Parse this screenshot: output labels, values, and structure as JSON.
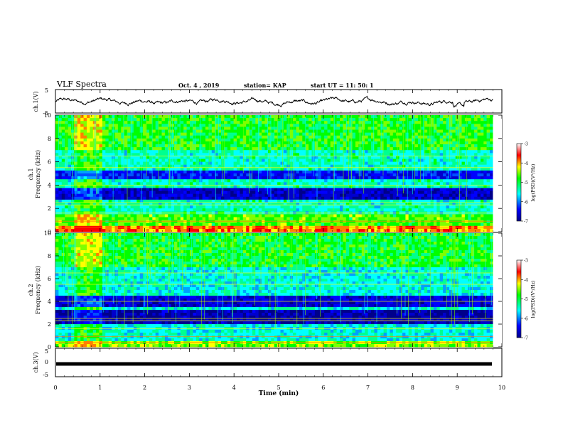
{
  "header": {
    "title": "VLF Spectra",
    "date": "Oct. 4 , 2019",
    "station": "station= KAP",
    "start": "start UT =  11: 50: 1"
  },
  "chart_data": [
    {
      "type": "line",
      "name": "ch1-waveform",
      "ylabel": "ch.1(V)",
      "ylim": [
        -5,
        5
      ],
      "yticks": [
        "5",
        "-5"
      ],
      "xlim": [
        0,
        10
      ],
      "description_values": "noisy waveform oscillating between about -1.5 and 1.5 V with excursion near 9 min"
    },
    {
      "type": "heatmap",
      "name": "ch1-spectrogram",
      "xlabel": "",
      "ylabel": "ch.1\nFrequency (kHz)",
      "xlim": [
        0,
        9.8
      ],
      "ylim": [
        0,
        10
      ],
      "yticks": [
        "0",
        "2",
        "4",
        "6",
        "8",
        "10"
      ],
      "colorbar": {
        "label": "log(PSD)(V²/Hz)",
        "range": [
          -7,
          -3
        ],
        "ticks": [
          "-3",
          "-4",
          "-5",
          "-6",
          "-7"
        ]
      }
    },
    {
      "type": "heatmap",
      "name": "ch2-spectrogram",
      "ylabel": "ch.2\nFrequency (kHz)",
      "xlim": [
        0,
        9.8
      ],
      "ylim": [
        0,
        10
      ],
      "yticks": [
        "0",
        "2",
        "4",
        "6",
        "8",
        "10"
      ],
      "colorbar": {
        "label": "log(PSD)(V²/Hz)",
        "range": [
          -7,
          -3
        ],
        "ticks": [
          "-3",
          "-4",
          "-5",
          "-6",
          "-7"
        ]
      }
    },
    {
      "type": "line",
      "name": "ch3-waveform",
      "ylabel": "ch.3(V)",
      "ylim": [
        -5,
        5
      ],
      "yticks": [
        "5",
        "0",
        "-5"
      ],
      "xlim": [
        0,
        10
      ],
      "flat_value": -1,
      "xlabel": "Time (min)",
      "xticks": [
        "0",
        "1",
        "2",
        "3",
        "4",
        "5",
        "6",
        "7",
        "8",
        "9",
        "10"
      ]
    }
  ],
  "labels": {
    "ch1_v": "ch.1(V)",
    "ch1_spec_a": "ch.1",
    "ch1_spec_b": "Frequency (kHz)",
    "ch2_spec_a": "ch.2",
    "ch2_spec_b": "Frequency (kHz)",
    "ch3_v": "ch.3(V)",
    "xlabel": "Time (min)",
    "cbar_label": "log(PSD)(V²/Hz)"
  },
  "colors": {
    "deep": "#00008b",
    "blue": "#0000ff",
    "cyan": "#00ffff",
    "green": "#00ff00",
    "yellow": "#ffff00",
    "red": "#ff0000",
    "darkred": "#8b0000"
  }
}
